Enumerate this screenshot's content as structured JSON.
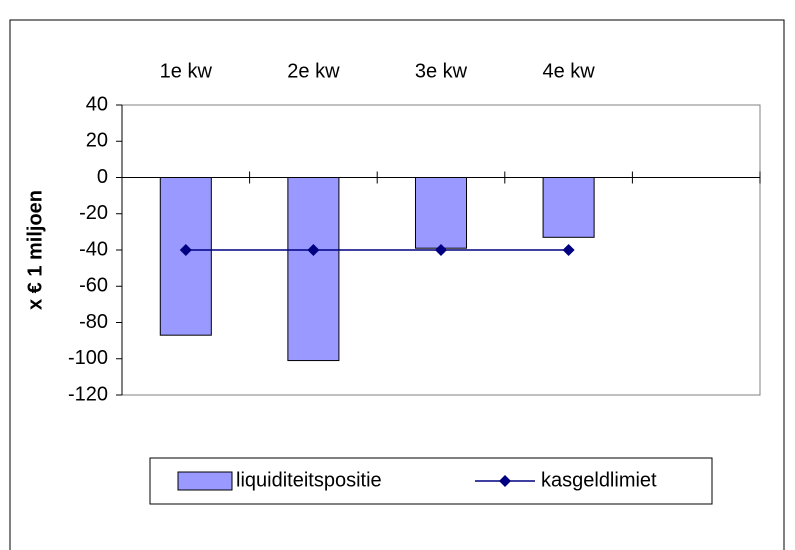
{
  "chart_data": {
    "type": "bar",
    "y_label": "x € 1 miljoen",
    "categories": [
      "1e kw",
      "2e kw",
      "3e kw",
      "4e kw",
      null
    ],
    "series": [
      {
        "name": "liquiditeitspositie",
        "type": "bar",
        "color": "#9999ff",
        "values": [
          -87,
          -101,
          -39,
          -33,
          null
        ]
      },
      {
        "name": "kasgeldlimiet",
        "type": "line",
        "color": "#000080",
        "values": [
          -40,
          -40,
          -40,
          -40,
          null
        ]
      }
    ],
    "ylim": [
      -120,
      40
    ],
    "yticks": [
      40,
      20,
      0,
      -20,
      -40,
      -60,
      -80,
      -100,
      -120
    ],
    "legend": "bottom"
  }
}
